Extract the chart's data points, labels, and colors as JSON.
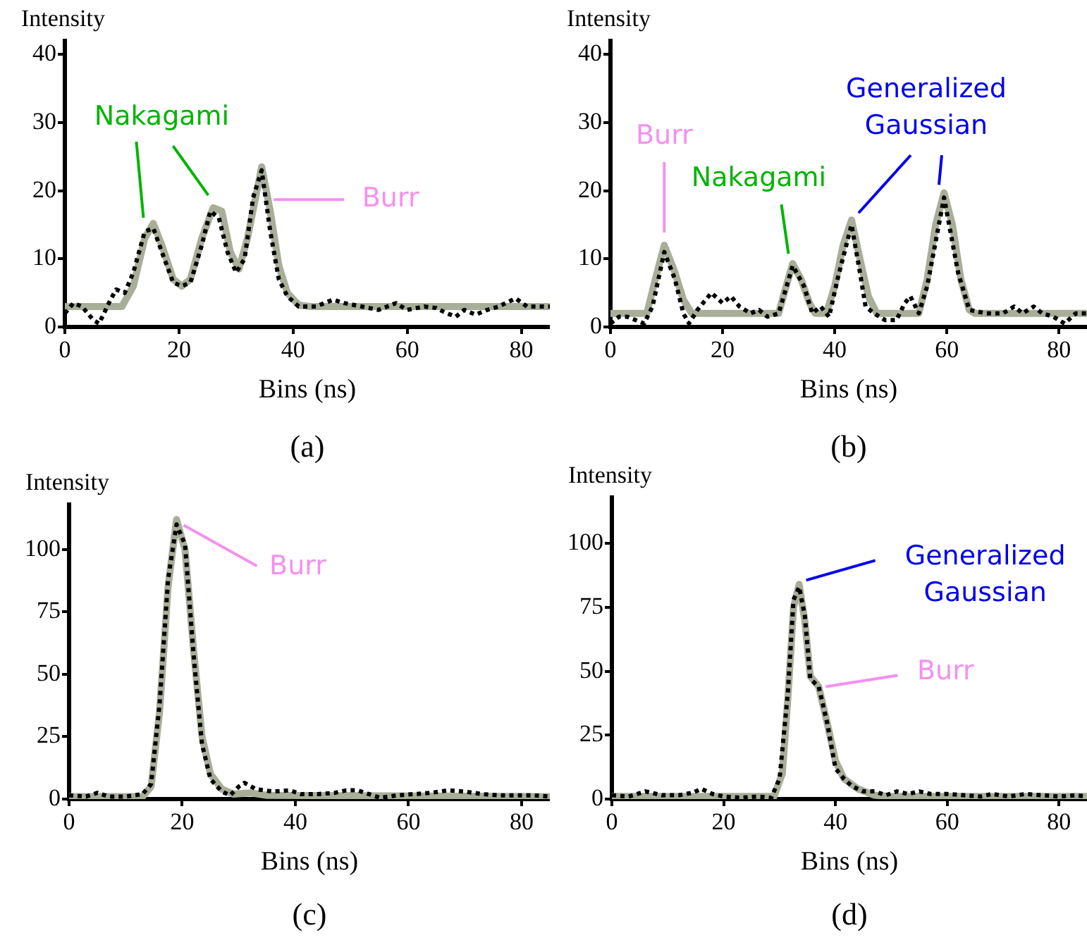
{
  "chart_data": [
    {
      "type": "line",
      "xlabel": "Bins (ns)",
      "ylabel": "Intensity",
      "xlim": [
        0,
        85
      ],
      "ylim": [
        0,
        42
      ],
      "xticks": [
        0,
        20,
        40,
        60,
        80
      ],
      "yticks": [
        0,
        10,
        20,
        30,
        40
      ],
      "grid": false,
      "legend": false,
      "marker": "none",
      "series": [
        {
          "color": "#a8ae98",
          "line_style": "solid",
          "x": [
            0,
            10,
            12,
            14,
            15.5,
            17,
            19,
            20.5,
            22,
            24,
            26,
            27.5,
            29,
            30.5,
            32,
            34.5,
            36,
            37.5,
            39,
            41,
            43,
            85
          ],
          "values": [
            3,
            3,
            6,
            13,
            15.2,
            12,
            7,
            6,
            7,
            13,
            17.5,
            17,
            11,
            8.5,
            13,
            23.5,
            17,
            9,
            5,
            3.2,
            3,
            3
          ]
        },
        {
          "color": "#000000",
          "line_style": "dotted",
          "x": [
            0,
            1.5,
            3,
            5,
            6,
            8,
            9,
            10.5,
            12,
            14,
            15.5,
            17,
            19,
            20.5,
            22,
            24,
            25.5,
            27,
            28.5,
            30,
            31.5,
            33,
            34.5,
            36,
            37.5,
            39,
            41,
            44,
            47,
            49,
            52,
            55,
            56.5,
            58,
            60,
            63,
            65,
            67,
            68.5,
            70,
            72,
            74,
            76,
            79,
            81,
            85
          ],
          "values": [
            2,
            3.5,
            3,
            1,
            0.5,
            4,
            5.5,
            5,
            8,
            14,
            14.5,
            11,
            6.5,
            6,
            6.5,
            12,
            17,
            16,
            11,
            8,
            10,
            19,
            23,
            14,
            7,
            4.5,
            3,
            3,
            4,
            3.5,
            3,
            2.5,
            3,
            3.5,
            2.5,
            3,
            2.8,
            2,
            1.5,
            2.5,
            1.8,
            2.5,
            3,
            4.2,
            3,
            3
          ]
        }
      ],
      "annotations": [
        {
          "text": "Nakagami",
          "x": 15.5,
          "y": 15.2
        },
        {
          "text": "Burr",
          "x": 35.6,
          "y": 18.7
        },
        "(a)"
      ]
    },
    {
      "type": "line",
      "xlabel": "Bins (ns)",
      "ylabel": "Intensity",
      "xlim": [
        0,
        85
      ],
      "ylim": [
        0,
        42
      ],
      "xticks": [
        0,
        20,
        40,
        60,
        80
      ],
      "yticks": [
        0,
        10,
        20,
        30,
        40
      ],
      "grid": false,
      "legend": false,
      "marker": "none",
      "series": [
        {
          "color": "#a8ae98",
          "line_style": "solid",
          "x": [
            0,
            6.5,
            8,
            9.6,
            11.5,
            13,
            14.5,
            30,
            31,
            32.5,
            34,
            35.5,
            36.5,
            38.5,
            40,
            41.5,
            43,
            44.5,
            46,
            47.5,
            55,
            56.5,
            58,
            59.5,
            61,
            62.5,
            64,
            65,
            85
          ],
          "values": [
            2,
            2,
            7,
            12,
            8,
            4,
            2,
            2,
            5,
            9.3,
            7,
            3.5,
            2,
            2,
            6,
            12,
            15.7,
            10,
            4.5,
            2,
            2,
            7,
            15,
            19.7,
            15,
            7,
            2.5,
            2,
            2
          ]
        },
        {
          "color": "#000000",
          "line_style": "dotted",
          "x": [
            0,
            1.5,
            3,
            4.5,
            6,
            7.5,
            9.6,
            11.5,
            13,
            14,
            15.5,
            17,
            18,
            20,
            21.5,
            23,
            25,
            26.5,
            28,
            30,
            32.5,
            34.5,
            36,
            37.5,
            39,
            40.5,
            43,
            44.5,
            45.5,
            47,
            49,
            51,
            52.5,
            53.5,
            55,
            56.5,
            59.5,
            62,
            64,
            67,
            70,
            72,
            73.5,
            75.5,
            77,
            79,
            81,
            83,
            85
          ],
          "values": [
            0.5,
            1.5,
            1.5,
            1,
            0.5,
            3,
            11,
            7,
            2,
            0.5,
            2.5,
            4,
            5,
            3.5,
            4.5,
            3,
            2,
            2.5,
            1.5,
            2,
            9,
            6,
            2,
            3,
            1.5,
            7,
            15,
            8,
            3,
            2,
            1,
            1,
            3.5,
            4.5,
            2,
            6,
            19,
            8,
            2.5,
            2,
            2,
            3,
            2,
            3,
            2,
            1.5,
            0.5,
            2,
            2
          ]
        }
      ],
      "annotations": [
        {
          "text": "Burr",
          "x": 9.6,
          "y": 12
        },
        {
          "text": "Nakagami",
          "x": 32.5,
          "y": 9.3
        },
        {
          "text": "Generalized Gaussian",
          "x": 43,
          "y": 15.7
        },
        "(b)"
      ]
    },
    {
      "type": "line",
      "xlabel": "Bins (ns)",
      "ylabel": "Intensity",
      "xlim": [
        0,
        85
      ],
      "ylim": [
        0,
        118
      ],
      "xticks": [
        0,
        20,
        40,
        60,
        80
      ],
      "yticks": [
        0,
        25,
        50,
        75,
        100
      ],
      "grid": false,
      "legend": false,
      "marker": "none",
      "series": [
        {
          "color": "#a8ae98",
          "line_style": "solid",
          "x": [
            0,
            13,
            14.5,
            16,
            17.5,
            19,
            20.5,
            22,
            23.5,
            25,
            27,
            29,
            32,
            35,
            85
          ],
          "values": [
            1,
            1,
            5,
            35,
            85,
            112,
            100,
            60,
            25,
            10,
            4,
            2,
            2.5,
            1.5,
            1
          ]
        },
        {
          "color": "#000000",
          "line_style": "dotted",
          "x": [
            0,
            3,
            5,
            7,
            10,
            13,
            14.5,
            16,
            17.5,
            19,
            20.5,
            22,
            23.5,
            25,
            27,
            28.5,
            30,
            31,
            33,
            36,
            39,
            41,
            44,
            47,
            49,
            51,
            53,
            55,
            58,
            61,
            64,
            67,
            70,
            73,
            76,
            79,
            82,
            85
          ],
          "values": [
            1.5,
            1,
            2.5,
            1,
            1,
            2,
            6,
            38,
            88,
            110,
            102,
            58,
            22,
            8,
            3,
            1.5,
            5,
            6.5,
            4,
            3,
            3.5,
            2,
            2,
            2.5,
            3.5,
            3.5,
            2,
            0.5,
            1.5,
            2,
            2.5,
            3.5,
            3,
            2,
            1.5,
            1.5,
            1.5,
            1
          ]
        }
      ],
      "annotations": [
        {
          "text": "Burr",
          "x": 19,
          "y": 112
        },
        "(c)"
      ]
    },
    {
      "type": "line",
      "xlabel": "Bins (ns)",
      "ylabel": "Intensity",
      "xlim": [
        0,
        85
      ],
      "ylim": [
        0,
        118
      ],
      "xticks": [
        0,
        20,
        40,
        60,
        80
      ],
      "yticks": [
        0,
        25,
        50,
        75,
        100
      ],
      "grid": false,
      "legend": false,
      "marker": "none",
      "series": [
        {
          "color": "#a8ae98",
          "line_style": "solid",
          "x": [
            0,
            29,
            30.5,
            31.5,
            32.5,
            33.5,
            34.5,
            35.5,
            37,
            38.5,
            40,
            41.5,
            44,
            47,
            50,
            85
          ],
          "values": [
            1,
            1,
            10,
            40,
            75,
            84,
            70,
            48,
            44,
            30,
            15,
            8,
            4,
            1.5,
            1,
            1
          ]
        },
        {
          "color": "#000000",
          "line_style": "dotted",
          "x": [
            0,
            3,
            6,
            9,
            12,
            14.5,
            16,
            18,
            20,
            23,
            26,
            28.5,
            30,
            31.5,
            32.5,
            33.5,
            34.5,
            35.5,
            37,
            38.5,
            40,
            41.5,
            43,
            45,
            47,
            49,
            51,
            53,
            55,
            57,
            60,
            63,
            66,
            68,
            71,
            74,
            77,
            80,
            83,
            85
          ],
          "values": [
            1.5,
            1,
            3,
            1.5,
            1.5,
            2.5,
            4,
            2,
            1,
            0.5,
            1,
            0.5,
            8,
            42,
            78,
            83,
            72,
            47,
            44,
            30,
            12,
            8,
            5,
            3,
            3,
            1.5,
            3,
            2,
            3,
            2,
            2,
            1.5,
            1,
            2,
            1,
            2,
            1.5,
            1,
            1.5,
            1
          ]
        }
      ],
      "annotations": [
        {
          "text": "Generalized Gaussian",
          "x": 33.5,
          "y": 84
        },
        {
          "text": "Burr",
          "x": 37,
          "y": 44
        },
        "(d)"
      ]
    }
  ]
}
